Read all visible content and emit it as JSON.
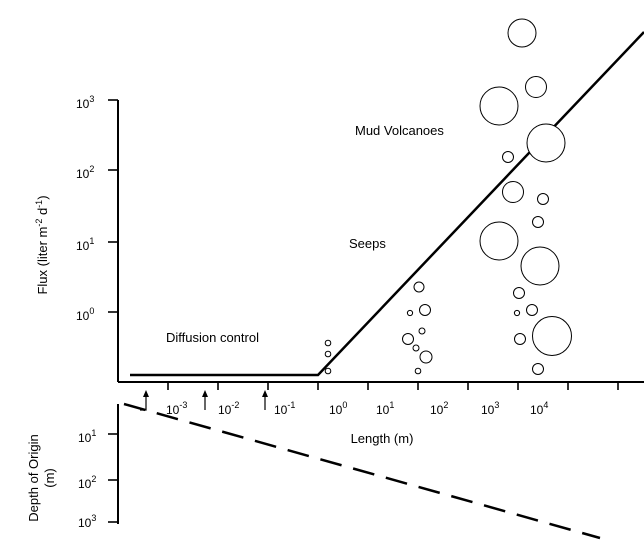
{
  "flux_axis": {
    "title": "Flux (liter m",
    "title_sup1": "-2",
    "title_mid": " d",
    "title_sup2": "-1",
    "title_end": ")",
    "ticks": [
      {
        "base": "10",
        "exp": "3"
      },
      {
        "base": "10",
        "exp": "2"
      },
      {
        "base": "10",
        "exp": "1"
      },
      {
        "base": "10",
        "exp": "0"
      }
    ]
  },
  "length_axis": {
    "title": "Length (m)",
    "ticks": [
      {
        "base": "10",
        "exp": "-3"
      },
      {
        "base": "10",
        "exp": "-2"
      },
      {
        "base": "10",
        "exp": "-1"
      },
      {
        "base": "10",
        "exp": "0"
      },
      {
        "base": "10",
        "exp": "1"
      },
      {
        "base": "10",
        "exp": "2"
      },
      {
        "base": "10",
        "exp": "3"
      },
      {
        "base": "10",
        "exp": "4"
      }
    ]
  },
  "depth_axis": {
    "title_line1": "Depth of Origin",
    "title_line2": "(m)",
    "ticks": [
      {
        "base": "10",
        "exp": "1"
      },
      {
        "base": "10",
        "exp": "2"
      },
      {
        "base": "10",
        "exp": "3"
      }
    ]
  },
  "labels": {
    "diffusion": "Diffusion control",
    "seeps": "Seeps",
    "mud_volcanoes": "Mud Volcanoes"
  },
  "colors": {
    "line": "#000000",
    "bubble_fill": "#ffffff",
    "background": "#ffffff"
  }
}
